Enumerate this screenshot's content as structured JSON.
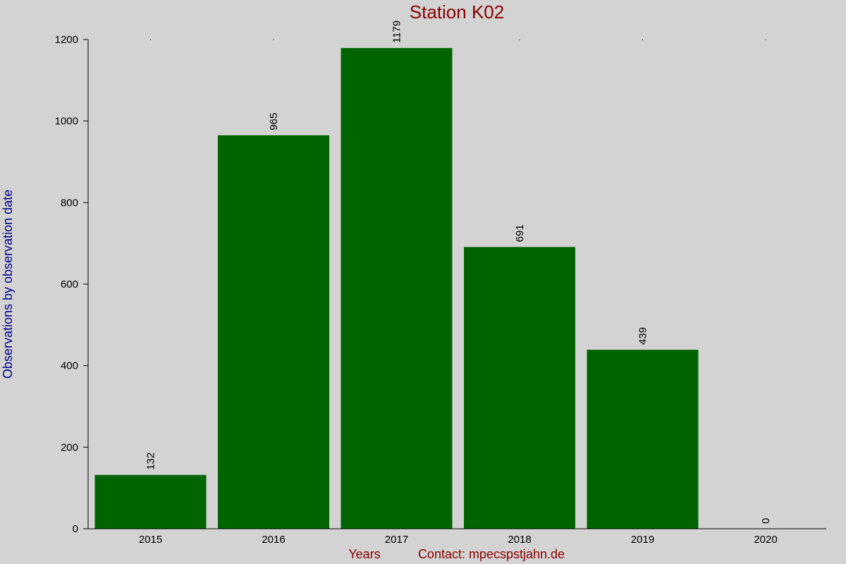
{
  "chart_data": {
    "type": "bar",
    "title": "Station K02",
    "xlabel": "Years",
    "ylabel": "Observations by observation date",
    "footer": "Contact: mpecspstjahn.de",
    "categories": [
      "2015",
      "2016",
      "2017",
      "2018",
      "2019",
      "2020"
    ],
    "values": [
      132,
      965,
      1179,
      691,
      439,
      0
    ],
    "data_labels": [
      "132",
      "965",
      "1179",
      "691",
      "439",
      "0"
    ],
    "ylim": [
      0,
      1200
    ],
    "yticks": [
      0,
      200,
      400,
      600,
      800,
      1000,
      1200
    ],
    "grid": false,
    "bar_color": "#006400"
  }
}
